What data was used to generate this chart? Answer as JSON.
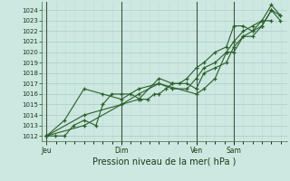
{
  "title": "",
  "xlabel": "Pression niveau de la mer( hPa )",
  "bg_color": "#cce8e0",
  "grid_color_major": "#aacccc",
  "grid_color_minor": "#c4dcd8",
  "line_color": "#2a5e2a",
  "ylim": [
    1011.5,
    1024.8
  ],
  "yticks": [
    1012,
    1013,
    1014,
    1015,
    1016,
    1017,
    1018,
    1019,
    1020,
    1021,
    1022,
    1023,
    1024
  ],
  "day_labels": [
    "Jeu",
    "Dim",
    "Ven",
    "Sam"
  ],
  "day_positions": [
    0.0,
    0.333,
    0.667,
    0.833
  ],
  "vline_color": "#445544",
  "series": [
    [
      [
        0.0,
        1012
      ],
      [
        0.04,
        1012
      ],
      [
        0.08,
        1012
      ],
      [
        0.12,
        1013
      ],
      [
        0.167,
        1013.5
      ],
      [
        0.22,
        1013
      ],
      [
        0.25,
        1015
      ],
      [
        0.29,
        1016
      ],
      [
        0.333,
        1016
      ],
      [
        0.375,
        1016
      ],
      [
        0.416,
        1015.5
      ],
      [
        0.45,
        1015.5
      ],
      [
        0.48,
        1016
      ],
      [
        0.5,
        1016
      ],
      [
        0.53,
        1016.5
      ],
      [
        0.56,
        1017
      ],
      [
        0.59,
        1017
      ],
      [
        0.625,
        1017.5
      ],
      [
        0.666,
        1018.5
      ],
      [
        0.7,
        1019
      ],
      [
        0.75,
        1020
      ],
      [
        0.8,
        1020.5
      ],
      [
        0.833,
        1022.5
      ],
      [
        0.875,
        1022.5
      ],
      [
        0.916,
        1022
      ],
      [
        0.958,
        1023
      ],
      [
        1.0,
        1023
      ]
    ],
    [
      [
        0.0,
        1012
      ],
      [
        0.08,
        1013.5
      ],
      [
        0.167,
        1016.5
      ],
      [
        0.25,
        1016
      ],
      [
        0.333,
        1015.5
      ],
      [
        0.41,
        1016.5
      ],
      [
        0.5,
        1017
      ],
      [
        0.56,
        1016.5
      ],
      [
        0.625,
        1016.5
      ],
      [
        0.666,
        1017.5
      ],
      [
        0.7,
        1018.5
      ],
      [
        0.75,
        1019
      ],
      [
        0.8,
        1020
      ],
      [
        0.833,
        1020
      ],
      [
        0.875,
        1021.5
      ],
      [
        0.916,
        1021.5
      ],
      [
        0.958,
        1022.5
      ],
      [
        1.0,
        1024
      ],
      [
        1.04,
        1023.5
      ]
    ],
    [
      [
        0.0,
        1012
      ],
      [
        0.167,
        1013
      ],
      [
        0.333,
        1015
      ],
      [
        0.41,
        1015.5
      ],
      [
        0.5,
        1017.5
      ],
      [
        0.56,
        1017
      ],
      [
        0.625,
        1017
      ],
      [
        0.666,
        1016.5
      ],
      [
        0.7,
        1018
      ],
      [
        0.75,
        1018.5
      ],
      [
        0.8,
        1019
      ],
      [
        0.833,
        1020.5
      ],
      [
        0.875,
        1021.5
      ],
      [
        0.916,
        1022
      ],
      [
        0.958,
        1022.5
      ],
      [
        1.0,
        1024
      ],
      [
        1.04,
        1023
      ]
    ],
    [
      [
        0.0,
        1012
      ],
      [
        0.167,
        1014
      ],
      [
        0.333,
        1015
      ],
      [
        0.41,
        1016
      ],
      [
        0.5,
        1017
      ],
      [
        0.666,
        1016
      ],
      [
        0.7,
        1016.5
      ],
      [
        0.75,
        1017.5
      ],
      [
        0.8,
        1020
      ],
      [
        0.833,
        1021
      ],
      [
        0.875,
        1022
      ],
      [
        0.916,
        1022.5
      ],
      [
        0.958,
        1023
      ],
      [
        1.0,
        1024.5
      ],
      [
        1.04,
        1023.5
      ]
    ]
  ]
}
